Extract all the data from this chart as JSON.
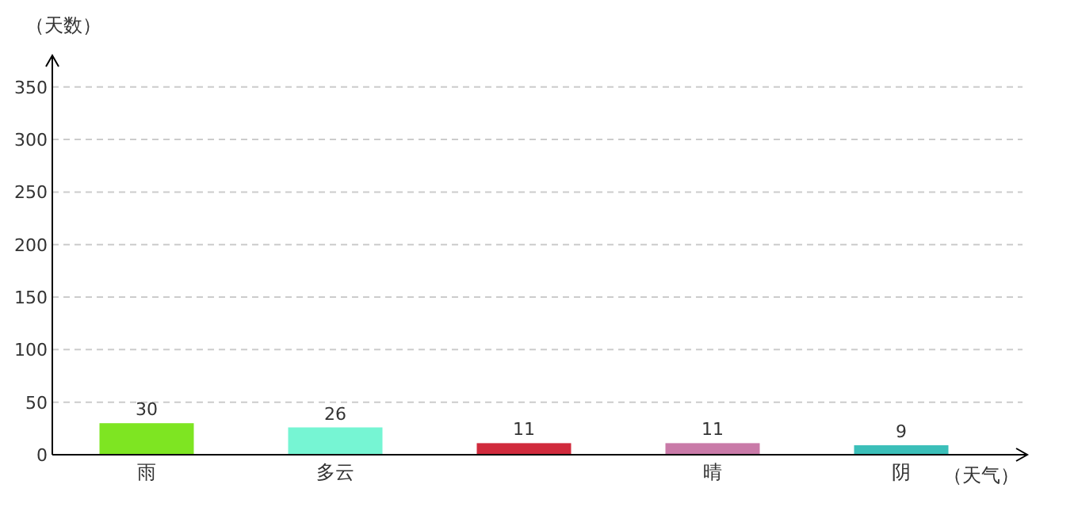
{
  "chart_data": {
    "type": "bar",
    "ylabel": "（天数）",
    "xlabel": "（天气）",
    "categories": [
      "雨",
      "多云",
      null,
      "晴",
      "阴"
    ],
    "values": [
      30,
      26,
      11,
      11,
      9
    ],
    "colors": [
      "#7ee522",
      "#76f5d3",
      "#d02a3c",
      "#c97aa8",
      "#3bbfb9"
    ],
    "ylim": [
      0,
      380
    ],
    "yticks": [
      0,
      50,
      100,
      150,
      200,
      250,
      300,
      350
    ],
    "grid": "y",
    "data_labels": true
  }
}
